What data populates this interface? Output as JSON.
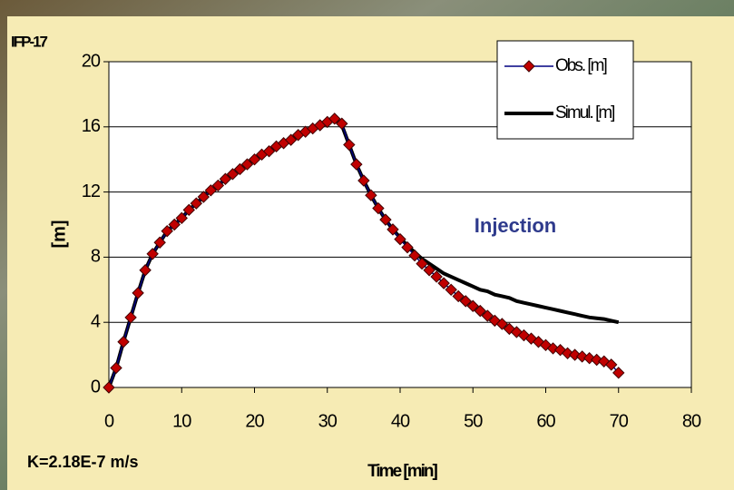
{
  "chart_data": {
    "type": "line",
    "title": "IFP-17",
    "x_label": "Time [min]",
    "y_label": "[m]",
    "annotation": "Injection",
    "note": "K=2.18E-7 m/s",
    "x": [
      0,
      1,
      2,
      3,
      4,
      5,
      6,
      7,
      8,
      9,
      10,
      11,
      12,
      13,
      14,
      15,
      16,
      17,
      18,
      19,
      20,
      21,
      22,
      23,
      24,
      25,
      26,
      27,
      28,
      29,
      30,
      31,
      32,
      33,
      34,
      35,
      36,
      37,
      38,
      39,
      40,
      41,
      42,
      43,
      44,
      45,
      46,
      47,
      48,
      49,
      50,
      51,
      52,
      53,
      54,
      55,
      56,
      57,
      58,
      59,
      60,
      61,
      62,
      63,
      64,
      65,
      66,
      67,
      68,
      69,
      70
    ],
    "series": [
      {
        "name": "Obs. [m]",
        "color": "#000080",
        "marker_color": "#c00000",
        "values": [
          0,
          1.2,
          2.8,
          4.3,
          5.8,
          7.2,
          8.2,
          8.9,
          9.6,
          10.0,
          10.4,
          10.9,
          11.3,
          11.7,
          12.1,
          12.4,
          12.8,
          13.1,
          13.4,
          13.7,
          14.0,
          14.3,
          14.5,
          14.8,
          15.0,
          15.2,
          15.5,
          15.7,
          15.9,
          16.1,
          16.3,
          16.5,
          16.2,
          14.9,
          13.7,
          12.7,
          11.8,
          11.0,
          10.3,
          9.7,
          9.1,
          8.6,
          8.1,
          7.6,
          7.2,
          6.8,
          6.4,
          6.0,
          5.6,
          5.3,
          5.0,
          4.7,
          4.4,
          4.1,
          3.9,
          3.6,
          3.4,
          3.2,
          3.0,
          2.8,
          2.6,
          2.4,
          2.3,
          2.1,
          2.0,
          1.9,
          1.8,
          1.7,
          1.6,
          1.4,
          0.9
        ]
      },
      {
        "name": "Simul. [m]",
        "color": "#000000",
        "values": [
          0,
          1.2,
          2.8,
          4.3,
          5.8,
          7.2,
          8.2,
          8.9,
          9.6,
          10.0,
          10.4,
          10.9,
          11.3,
          11.7,
          12.1,
          12.4,
          12.8,
          13.1,
          13.4,
          13.7,
          14.0,
          14.3,
          14.5,
          14.8,
          15.0,
          15.2,
          15.5,
          15.7,
          15.9,
          16.1,
          16.3,
          16.5,
          16.1,
          14.9,
          13.7,
          12.7,
          11.8,
          11.0,
          10.3,
          9.7,
          9.2,
          8.7,
          8.3,
          7.9,
          7.6,
          7.3,
          7.0,
          6.8,
          6.6,
          6.4,
          6.2,
          6.0,
          5.9,
          5.7,
          5.6,
          5.5,
          5.3,
          5.2,
          5.1,
          5.0,
          4.9,
          4.8,
          4.7,
          4.6,
          4.5,
          4.4,
          4.3,
          4.25,
          4.2,
          4.1,
          4.0
        ]
      }
    ],
    "xlim": [
      0,
      80
    ],
    "xticks": [
      0,
      10,
      20,
      30,
      40,
      50,
      60,
      70,
      80
    ],
    "ylim": [
      0,
      20
    ],
    "yticks": [
      0,
      4,
      8,
      12,
      16,
      20
    ],
    "grid": true,
    "legend": "upper-right"
  }
}
